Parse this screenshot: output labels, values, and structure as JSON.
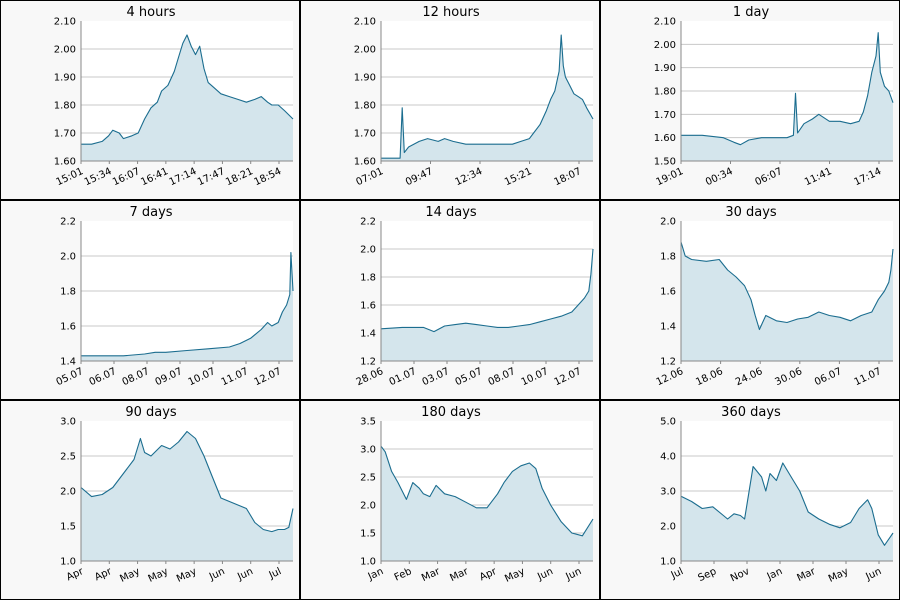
{
  "colors": {
    "line": "#1b6d8f",
    "fill": "#d4e5ec",
    "panel_bg": "#f8f8f8",
    "grid": "#c8c8c8"
  },
  "chart_data": [
    {
      "type": "area",
      "title": "4 hours",
      "xticks": [
        "15:01",
        "15:34",
        "16:07",
        "16:41",
        "17:14",
        "17:47",
        "18:21",
        "18:54"
      ],
      "yticks": [
        "1.60",
        "1.70",
        "1.80",
        "1.90",
        "2.00",
        "2.10"
      ],
      "ylim": [
        1.6,
        2.1
      ],
      "grid": true,
      "x": [
        0,
        0.05,
        0.1,
        0.13,
        0.15,
        0.18,
        0.2,
        0.24,
        0.27,
        0.3,
        0.33,
        0.36,
        0.38,
        0.41,
        0.44,
        0.46,
        0.48,
        0.5,
        0.52,
        0.54,
        0.56,
        0.58,
        0.6,
        0.63,
        0.66,
        0.7,
        0.74,
        0.78,
        0.82,
        0.85,
        0.88,
        0.9,
        0.93,
        0.96,
        1.0
      ],
      "values": [
        1.66,
        1.66,
        1.67,
        1.69,
        1.71,
        1.7,
        1.68,
        1.69,
        1.7,
        1.75,
        1.79,
        1.81,
        1.85,
        1.87,
        1.92,
        1.97,
        2.02,
        2.05,
        2.01,
        1.98,
        2.01,
        1.93,
        1.88,
        1.86,
        1.84,
        1.83,
        1.82,
        1.81,
        1.82,
        1.83,
        1.81,
        1.8,
        1.8,
        1.78,
        1.75
      ]
    },
    {
      "type": "area",
      "title": "12 hours",
      "xticks": [
        "07:01",
        "09:47",
        "12:34",
        "15:21",
        "18:07"
      ],
      "yticks": [
        "1.60",
        "1.70",
        "1.80",
        "1.90",
        "2.00",
        "2.10"
      ],
      "ylim": [
        1.6,
        2.1
      ],
      "grid": true,
      "x": [
        0,
        0.05,
        0.09,
        0.1,
        0.11,
        0.13,
        0.18,
        0.22,
        0.27,
        0.3,
        0.34,
        0.4,
        0.46,
        0.52,
        0.58,
        0.62,
        0.66,
        0.7,
        0.72,
        0.75,
        0.78,
        0.8,
        0.82,
        0.84,
        0.85,
        0.86,
        0.87,
        0.89,
        0.91,
        0.93,
        0.95,
        0.97,
        1.0
      ],
      "values": [
        1.61,
        1.61,
        1.61,
        1.79,
        1.63,
        1.65,
        1.67,
        1.68,
        1.67,
        1.68,
        1.67,
        1.66,
        1.66,
        1.66,
        1.66,
        1.66,
        1.67,
        1.68,
        1.7,
        1.73,
        1.78,
        1.82,
        1.85,
        1.92,
        2.05,
        1.94,
        1.9,
        1.87,
        1.84,
        1.83,
        1.82,
        1.79,
        1.75
      ]
    },
    {
      "type": "area",
      "title": "1 day",
      "xticks": [
        "19:01",
        "00:34",
        "06:07",
        "11:41",
        "17:14"
      ],
      "yticks": [
        "1.50",
        "1.60",
        "1.70",
        "1.80",
        "1.90",
        "2.00",
        "2.10"
      ],
      "ylim": [
        1.5,
        2.1
      ],
      "grid": true,
      "x": [
        0,
        0.1,
        0.2,
        0.25,
        0.28,
        0.32,
        0.38,
        0.44,
        0.5,
        0.53,
        0.54,
        0.55,
        0.58,
        0.62,
        0.65,
        0.7,
        0.75,
        0.8,
        0.84,
        0.86,
        0.88,
        0.9,
        0.92,
        0.93,
        0.94,
        0.96,
        0.98,
        1.0
      ],
      "values": [
        1.61,
        1.61,
        1.6,
        1.58,
        1.57,
        1.59,
        1.6,
        1.6,
        1.6,
        1.61,
        1.79,
        1.62,
        1.66,
        1.68,
        1.7,
        1.67,
        1.67,
        1.66,
        1.67,
        1.71,
        1.78,
        1.88,
        1.95,
        2.05,
        1.88,
        1.82,
        1.8,
        1.75
      ]
    },
    {
      "type": "area",
      "title": "7 days",
      "xticks": [
        "05.07",
        "06.07",
        "08.07",
        "09.07",
        "10.07",
        "11.07",
        "12.07"
      ],
      "yticks": [
        "1.4",
        "1.6",
        "1.8",
        "2.0",
        "2.2"
      ],
      "ylim": [
        1.4,
        2.2
      ],
      "grid": true,
      "x": [
        0,
        0.1,
        0.2,
        0.3,
        0.35,
        0.4,
        0.5,
        0.6,
        0.7,
        0.75,
        0.8,
        0.85,
        0.88,
        0.9,
        0.93,
        0.95,
        0.97,
        0.985,
        0.99,
        1.0
      ],
      "values": [
        1.43,
        1.43,
        1.43,
        1.44,
        1.45,
        1.45,
        1.46,
        1.47,
        1.48,
        1.5,
        1.53,
        1.58,
        1.62,
        1.6,
        1.62,
        1.68,
        1.72,
        1.78,
        2.02,
        1.8
      ]
    },
    {
      "type": "area",
      "title": "14 days",
      "xticks": [
        "28.06",
        "01.07",
        "03.07",
        "05.07",
        "08.07",
        "10.07",
        "12.07"
      ],
      "yticks": [
        "1.2",
        "1.4",
        "1.6",
        "1.8",
        "2.0",
        "2.2"
      ],
      "ylim": [
        1.2,
        2.2
      ],
      "grid": true,
      "x": [
        0,
        0.1,
        0.2,
        0.25,
        0.3,
        0.35,
        0.4,
        0.45,
        0.5,
        0.55,
        0.6,
        0.65,
        0.7,
        0.75,
        0.8,
        0.85,
        0.9,
        0.93,
        0.96,
        0.98,
        0.99,
        1.0
      ],
      "values": [
        1.43,
        1.44,
        1.44,
        1.41,
        1.45,
        1.46,
        1.47,
        1.46,
        1.45,
        1.44,
        1.44,
        1.45,
        1.46,
        1.48,
        1.5,
        1.52,
        1.55,
        1.6,
        1.65,
        1.7,
        1.82,
        2.0
      ]
    },
    {
      "type": "area",
      "title": "30 days",
      "xticks": [
        "12.06",
        "18.06",
        "24.06",
        "30.06",
        "06.07",
        "11.07"
      ],
      "yticks": [
        "1.2",
        "1.4",
        "1.6",
        "1.8",
        "2.0"
      ],
      "ylim": [
        1.2,
        2.0
      ],
      "grid": true,
      "x": [
        0,
        0.02,
        0.05,
        0.12,
        0.18,
        0.22,
        0.26,
        0.3,
        0.33,
        0.35,
        0.37,
        0.4,
        0.45,
        0.5,
        0.55,
        0.6,
        0.65,
        0.7,
        0.75,
        0.8,
        0.85,
        0.9,
        0.93,
        0.96,
        0.98,
        0.99,
        1.0
      ],
      "values": [
        1.88,
        1.8,
        1.78,
        1.77,
        1.78,
        1.72,
        1.68,
        1.63,
        1.55,
        1.46,
        1.38,
        1.46,
        1.43,
        1.42,
        1.44,
        1.45,
        1.48,
        1.46,
        1.45,
        1.43,
        1.46,
        1.48,
        1.55,
        1.6,
        1.65,
        1.72,
        1.84
      ]
    },
    {
      "type": "area",
      "title": "90 days",
      "xticks": [
        "Apr",
        "Apr",
        "May",
        "May",
        "May",
        "Jun",
        "Jun",
        "Jul"
      ],
      "yticks": [
        "1.0",
        "1.5",
        "2.0",
        "2.5",
        "3.0"
      ],
      "ylim": [
        1.0,
        3.0
      ],
      "grid": true,
      "x": [
        0,
        0.05,
        0.1,
        0.15,
        0.2,
        0.25,
        0.28,
        0.3,
        0.33,
        0.38,
        0.42,
        0.46,
        0.5,
        0.54,
        0.58,
        0.62,
        0.66,
        0.7,
        0.74,
        0.78,
        0.82,
        0.86,
        0.9,
        0.93,
        0.96,
        0.98,
        1.0
      ],
      "values": [
        2.05,
        1.92,
        1.95,
        2.05,
        2.25,
        2.45,
        2.75,
        2.55,
        2.5,
        2.65,
        2.6,
        2.7,
        2.85,
        2.75,
        2.5,
        2.2,
        1.9,
        1.85,
        1.8,
        1.75,
        1.55,
        1.45,
        1.42,
        1.45,
        1.45,
        1.48,
        1.75
      ]
    },
    {
      "type": "area",
      "title": "180 days",
      "xticks": [
        "Jan",
        "Feb",
        "Mar",
        "Mar",
        "Apr",
        "May",
        "Jun",
        "Jun"
      ],
      "yticks": [
        "1.0",
        "1.5",
        "2.0",
        "2.5",
        "3.0",
        "3.5"
      ],
      "ylim": [
        1.0,
        3.5
      ],
      "grid": true,
      "x": [
        0,
        0.02,
        0.05,
        0.08,
        0.1,
        0.12,
        0.15,
        0.18,
        0.2,
        0.23,
        0.26,
        0.3,
        0.35,
        0.4,
        0.45,
        0.5,
        0.55,
        0.58,
        0.62,
        0.66,
        0.7,
        0.73,
        0.76,
        0.8,
        0.85,
        0.9,
        0.95,
        1.0
      ],
      "values": [
        3.05,
        2.95,
        2.6,
        2.4,
        2.25,
        2.1,
        2.4,
        2.3,
        2.2,
        2.15,
        2.35,
        2.2,
        2.15,
        2.05,
        1.95,
        1.95,
        2.2,
        2.4,
        2.6,
        2.7,
        2.75,
        2.65,
        2.3,
        2.0,
        1.7,
        1.5,
        1.45,
        1.75
      ]
    },
    {
      "type": "area",
      "title": "360 days",
      "xticks": [
        "Jul",
        "Sep",
        "Nov",
        "Jan",
        "Mar",
        "May",
        "Jun"
      ],
      "yticks": [
        "1.0",
        "2.0",
        "3.0",
        "4.0",
        "5.0"
      ],
      "ylim": [
        1.0,
        5.0
      ],
      "grid": true,
      "x": [
        0,
        0.05,
        0.1,
        0.15,
        0.2,
        0.22,
        0.25,
        0.28,
        0.3,
        0.34,
        0.38,
        0.4,
        0.42,
        0.45,
        0.48,
        0.52,
        0.56,
        0.6,
        0.65,
        0.7,
        0.75,
        0.8,
        0.84,
        0.88,
        0.9,
        0.93,
        0.96,
        1.0
      ],
      "values": [
        2.85,
        2.7,
        2.5,
        2.55,
        2.3,
        2.2,
        2.35,
        2.3,
        2.2,
        3.7,
        3.4,
        3.0,
        3.5,
        3.3,
        3.8,
        3.4,
        3.0,
        2.4,
        2.2,
        2.05,
        1.95,
        2.1,
        2.5,
        2.75,
        2.5,
        1.75,
        1.45,
        1.8
      ]
    }
  ]
}
